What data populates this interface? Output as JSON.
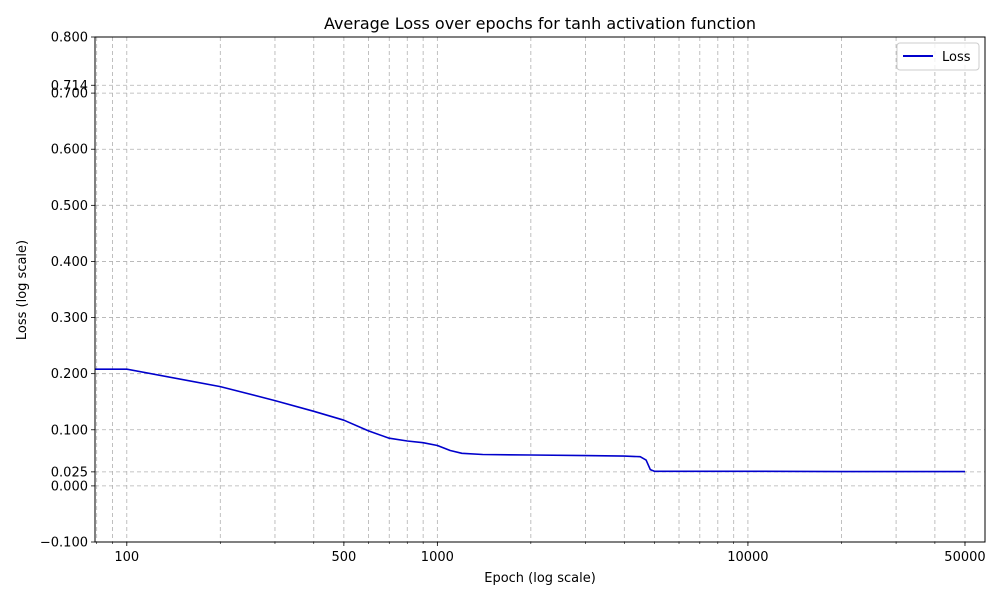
{
  "chart_data": {
    "type": "line",
    "title": "Average Loss over epochs for tanh activation function",
    "xlabel": "Epoch (log scale)",
    "ylabel": "Loss (log scale)",
    "x_scale": "log",
    "xlim": [
      79,
      58000
    ],
    "ylim": [
      -0.1,
      0.8
    ],
    "x_ticks": [
      100,
      500,
      1000,
      10000,
      50000
    ],
    "x_tick_labels": [
      "100",
      "500",
      "1000",
      "10000",
      "50000"
    ],
    "y_ticks": [
      -0.1,
      0.0,
      0.025,
      0.1,
      0.2,
      0.3,
      0.4,
      0.5,
      0.6,
      0.7,
      0.714,
      0.8
    ],
    "y_tick_labels": [
      "−0.100",
      "0.000",
      "0.025",
      "0.100",
      "0.200",
      "0.300",
      "0.400",
      "0.500",
      "0.600",
      "0.700",
      "0.714",
      "0.800"
    ],
    "grid": true,
    "legend_position": "top-right",
    "series": [
      {
        "name": "Loss",
        "color": "#0000cc",
        "x": [
          79,
          100,
          200,
          300,
          400,
          500,
          600,
          700,
          800,
          900,
          1000,
          1100,
          1200,
          1400,
          2000,
          3000,
          4000,
          4500,
          4700,
          4850,
          5000,
          6000,
          10000,
          20000,
          50000
        ],
        "y": [
          0.208,
          0.208,
          0.177,
          0.152,
          0.133,
          0.117,
          0.098,
          0.085,
          0.08,
          0.077,
          0.072,
          0.063,
          0.058,
          0.056,
          0.055,
          0.054,
          0.053,
          0.052,
          0.046,
          0.029,
          0.026,
          0.026,
          0.026,
          0.0255,
          0.0255
        ]
      }
    ]
  }
}
